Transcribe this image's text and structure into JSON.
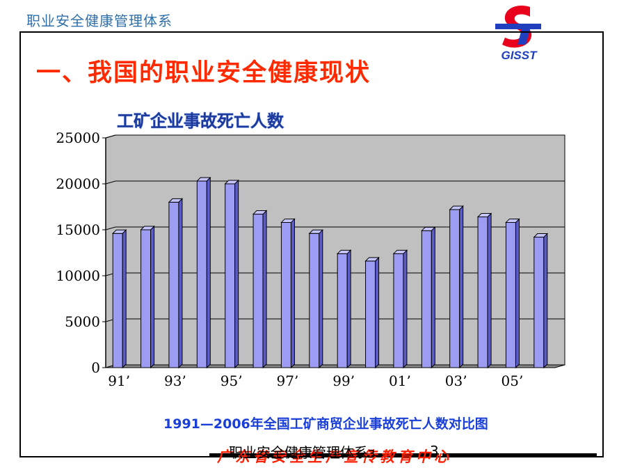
{
  "header": {
    "top_title": "职业安全健康管理体系",
    "logo_text": "GISST"
  },
  "slide": {
    "heading": "一、我国的职业安全健康现状",
    "caption": "1991—2006年全国工矿商贸企业事故死亡人数对比图"
  },
  "footer": {
    "doc_title": "职业安全健康管理体系з",
    "organization": "广东省安全生产宣传教育中心",
    "page_number": "3"
  },
  "colors": {
    "bar_fill": "#9c9cf2",
    "plot_bg": "#c0c0c0",
    "heading": "#ff2a00",
    "caption": "#1a3fd8",
    "chart_title": "#1e3a9a",
    "logo_red": "#e8001c",
    "logo_blue": "#1f3fbf"
  },
  "chart_data": {
    "type": "bar",
    "title": "工矿企业事故死亡人数",
    "xlabel": "",
    "ylabel": "",
    "ylim": [
      0,
      25000
    ],
    "yticks": [
      "0",
      "5000",
      "10000",
      "15000",
      "20000",
      "25000"
    ],
    "categories": [
      "1991",
      "1992",
      "1993",
      "1994",
      "1995",
      "1996",
      "1997",
      "1998",
      "1999",
      "2000",
      "2001",
      "2002",
      "2003",
      "2004",
      "2005",
      "2006"
    ],
    "xtick_labels": [
      "91’",
      "",
      "93’",
      "",
      "95’",
      "",
      "97’",
      "",
      "99’",
      "",
      "01’",
      "",
      "03’",
      "",
      "05’",
      ""
    ],
    "values": [
      14600,
      15000,
      18000,
      20300,
      20000,
      16700,
      15800,
      14600,
      12400,
      11600,
      12400,
      14900,
      17200,
      16400,
      15800,
      14200
    ],
    "grid": true,
    "style": "3d-bars"
  }
}
